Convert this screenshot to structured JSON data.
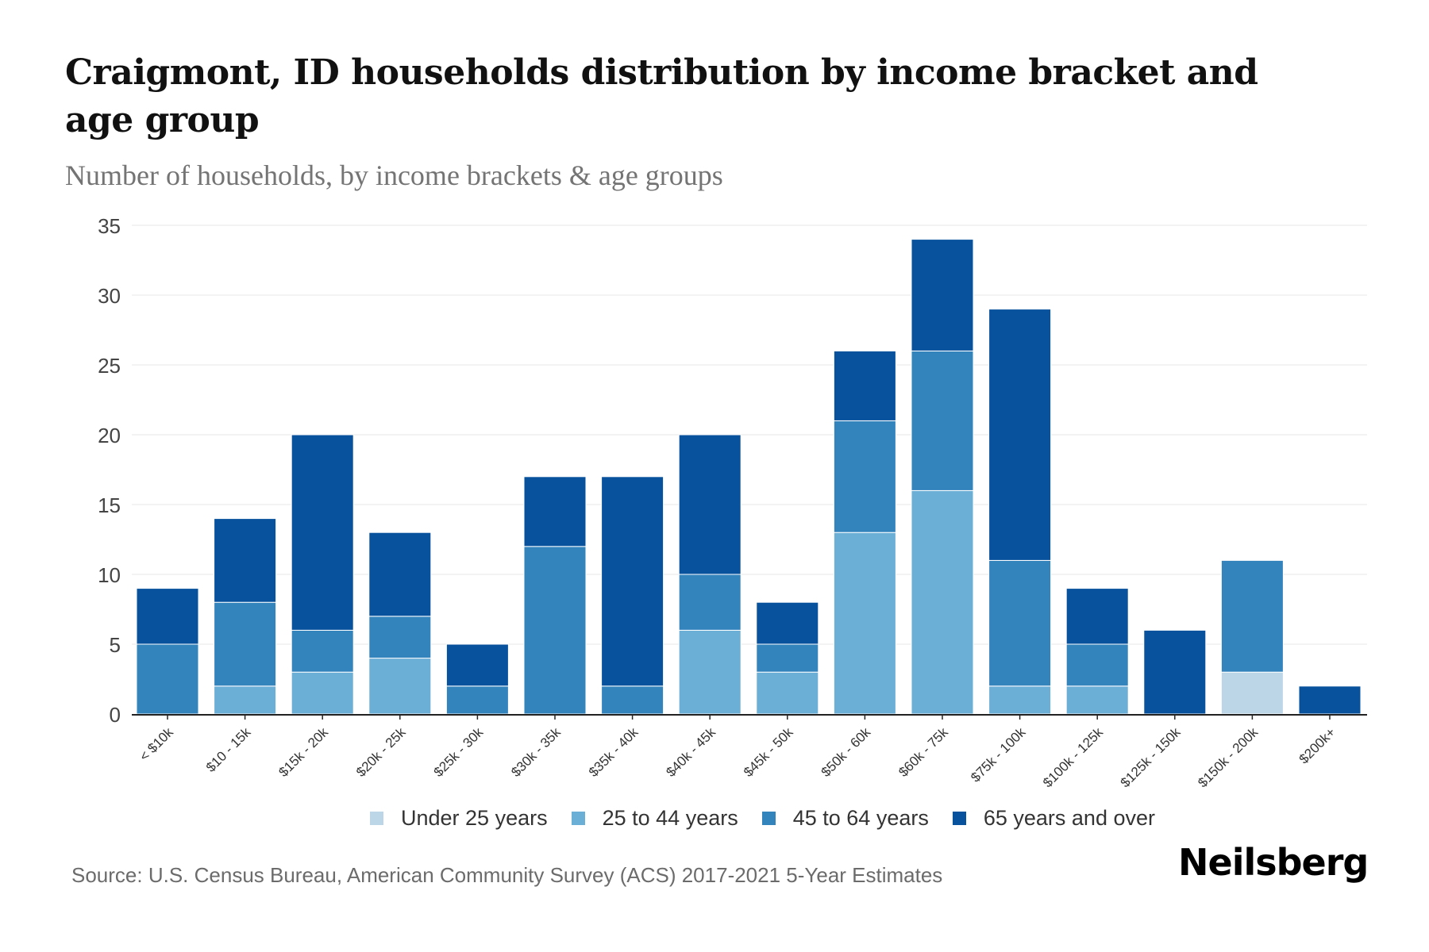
{
  "header": {
    "title": "Craigmont, ID households distribution by income bracket and age group",
    "subtitle": "Number of households, by income brackets & age groups"
  },
  "footer": {
    "source": "Source: U.S. Census Bureau, American Community Survey (ACS) 2017-2021 5-Year Estimates",
    "logo": "Neilsberg"
  },
  "chart_data": {
    "type": "bar",
    "stacked": true,
    "title": "Craigmont, ID households distribution by income bracket and age group",
    "subtitle": "Number of households, by income brackets & age groups",
    "xlabel": "",
    "ylabel": "",
    "ylim": [
      0,
      35
    ],
    "yticks": [
      0,
      5,
      10,
      15,
      20,
      25,
      30,
      35
    ],
    "grid": true,
    "legend_position": "bottom",
    "categories": [
      "< $10k",
      "$10 - 15k",
      "$15k - 20k",
      "$20k - 25k",
      "$25k - 30k",
      "$30k - 35k",
      "$35k - 40k",
      "$40k - 45k",
      "$45k - 50k",
      "$50k - 60k",
      "$60k - 75k",
      "$75k - 100k",
      "$100k - 125k",
      "$125k - 150k",
      "$150k - 200k",
      "$200k+"
    ],
    "series": [
      {
        "name": "Under 25 years",
        "color": "#bcd6e8",
        "values": [
          0,
          0,
          0,
          0,
          0,
          0,
          0,
          0,
          0,
          0,
          0,
          0,
          0,
          0,
          3,
          0
        ]
      },
      {
        "name": "25 to 44 years",
        "color": "#6baed6",
        "values": [
          0,
          2,
          3,
          4,
          0,
          0,
          0,
          6,
          3,
          13,
          16,
          2,
          2,
          0,
          0,
          0
        ]
      },
      {
        "name": "45 to 64 years",
        "color": "#3383bd",
        "values": [
          5,
          6,
          3,
          3,
          2,
          12,
          2,
          4,
          2,
          8,
          10,
          9,
          3,
          0,
          8,
          0
        ]
      },
      {
        "name": "65 years and over",
        "color": "#08519c",
        "values": [
          4,
          6,
          14,
          6,
          3,
          5,
          15,
          10,
          3,
          5,
          8,
          18,
          4,
          6,
          0,
          2
        ]
      }
    ]
  }
}
